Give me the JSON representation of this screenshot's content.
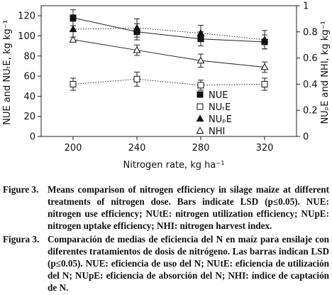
{
  "chart_data": {
    "type": "line",
    "xlabel": "Nitrogen rate, kg ha⁻¹",
    "ylabel_left": "NUE and NUₜE, kg kg⁻¹",
    "ylabel_right": "NUₚE and NHI, kg kg⁻¹",
    "x": [
      200,
      240,
      280,
      320
    ],
    "x_ticks": [
      "200",
      "240",
      "280",
      "320"
    ],
    "xlim": [
      180,
      340
    ],
    "ylim_left": [
      0,
      130
    ],
    "ylim_right": [
      0,
      1
    ],
    "yticks_left": [
      "0",
      "20",
      "40",
      "60",
      "80",
      "100",
      "120"
    ],
    "yticks_right": [
      "0",
      "0.2",
      "0.4",
      "0.6",
      "0.8",
      "1"
    ],
    "legend_position": "center-right",
    "series": [
      {
        "name": "NUE",
        "axis": "left",
        "marker": "filled-square",
        "line": "solid",
        "values": [
          118,
          104,
          97,
          94
        ],
        "lsd": [
          8,
          8,
          7,
          7
        ]
      },
      {
        "name": "NUₜE",
        "axis": "left",
        "marker": "open-square",
        "line": "dotted",
        "values": [
          52,
          57,
          51,
          52
        ],
        "lsd": [
          6,
          7,
          5,
          6
        ]
      },
      {
        "name": "NUₚE",
        "axis": "right",
        "marker": "filled-triangle",
        "line": "dotted",
        "values": [
          0.82,
          0.83,
          0.79,
          0.74
        ],
        "lsd": [
          0.06,
          0.07,
          0.06,
          0.07
        ]
      },
      {
        "name": "NHI",
        "axis": "right",
        "marker": "open-triangle",
        "line": "solid",
        "values": [
          0.74,
          0.66,
          0.58,
          0.53
        ],
        "lsd": [
          0,
          0.04,
          0.05,
          0.04
        ]
      }
    ]
  },
  "caption": {
    "en_label": "Figure 3.",
    "en_title": "Means comparison of nitrogen efficiency in silage maize at different treatments of nitrogen dose. Bars indicate LSD (p≤0.05). NUE: nitrogen use efficiency; NUtE: nitrogen utilization efficiency; NUpE: nitrogen uptake efficiency; NHI: nitrogen harvest index.",
    "es_label": "Figura 3.",
    "es_title": "Comparación de medias de eficiencia del N en maíz para ensilaje con diferentes tratamientos de dosis de nitrógeno. Las barras indican LSD (p≤0.05). NUE: eficiencia de uso del N; NUtE: eficiencia de utilización del N; NUpE: eficiencia de absorción del N; NHI: índice de captación de N."
  }
}
